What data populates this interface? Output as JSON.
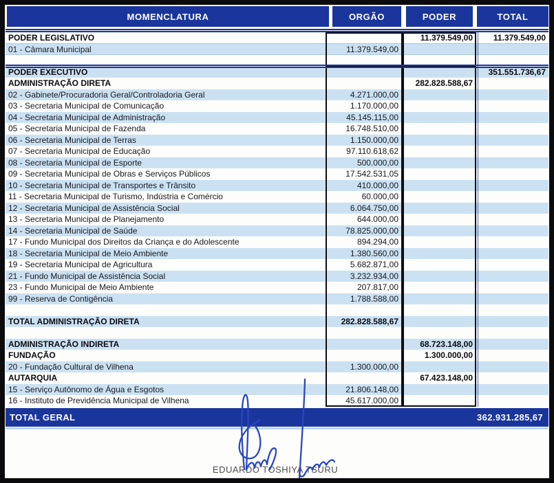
{
  "document": {
    "title": "Municipal budget allocation table",
    "columns": {
      "momenclatura": "MOMENCLATURA",
      "orgao": "ORGÃO",
      "poder": "PODER",
      "total": "TOTAL"
    },
    "rows": [
      {
        "label": "PODER LEGISLATIVO",
        "orgao": "",
        "poder": "11.379.549,00",
        "total": "11.379.549,00",
        "bold": true,
        "shade": "white",
        "underline": true
      },
      {
        "label": "01 - Câmara Municipal",
        "orgao": "11.379.549,00",
        "poder": "",
        "total": "",
        "bold": false,
        "shade": "blue",
        "underline": true
      },
      {
        "label": "",
        "orgao": "",
        "poder": "",
        "total": "",
        "bold": false,
        "shade": "white"
      },
      {
        "label": "PODER EXECUTIVO",
        "orgao": "",
        "poder": "",
        "total": "351.551.736,67",
        "bold": true,
        "shade": "blue"
      },
      {
        "label": "ADMINISTRAÇÃO DIRETA",
        "orgao": "",
        "poder": "282.828.588,67",
        "total": "",
        "bold": true,
        "shade": "white"
      },
      {
        "label": "02 - Gabinete/Procuradoria Geral/Controladoria Geral",
        "orgao": "4.271.000,00",
        "poder": "",
        "total": "",
        "bold": false,
        "shade": "blue"
      },
      {
        "label": "03 - Secretaria Municipal de Comunicação",
        "orgao": "1.170.000,00",
        "poder": "",
        "total": "",
        "bold": false,
        "shade": "white"
      },
      {
        "label": "04 - Secretaria Municipal de Administração",
        "orgao": "45.145.115,00",
        "poder": "",
        "total": "",
        "bold": false,
        "shade": "blue"
      },
      {
        "label": "05 - Secretaria Municipal de Fazenda",
        "orgao": "16.748.510,00",
        "poder": "",
        "total": "",
        "bold": false,
        "shade": "white"
      },
      {
        "label": "06 - Secretaria Municipal de Terras",
        "orgao": "1.150.000,00",
        "poder": "",
        "total": "",
        "bold": false,
        "shade": "blue"
      },
      {
        "label": "07 - Secretaria Municipal de Educação",
        "orgao": "97.110.618,62",
        "poder": "",
        "total": "",
        "bold": false,
        "shade": "white"
      },
      {
        "label": "08 - Secretaria Municipal de Esporte",
        "orgao": "500.000,00",
        "poder": "",
        "total": "",
        "bold": false,
        "shade": "blue"
      },
      {
        "label": "09 - Secretaria Municipal de Obras e Serviços Públicos",
        "orgao": "17.542.531,05",
        "poder": "",
        "total": "",
        "bold": false,
        "shade": "white"
      },
      {
        "label": "10 - Secretaria Municipal de Transportes e Trânsito",
        "orgao": "410.000,00",
        "poder": "",
        "total": "",
        "bold": false,
        "shade": "blue"
      },
      {
        "label": "11 - Secretaria Municipal de Turismo, Indústria e Comércio",
        "orgao": "60.000,00",
        "poder": "",
        "total": "",
        "bold": false,
        "shade": "white"
      },
      {
        "label": "12 - Secretaria Municipal de Assistência Social",
        "orgao": "6.064.750,00",
        "poder": "",
        "total": "",
        "bold": false,
        "shade": "blue"
      },
      {
        "label": "13 - Secretaria Municipal de Planejamento",
        "orgao": "644.000,00",
        "poder": "",
        "total": "",
        "bold": false,
        "shade": "white"
      },
      {
        "label": "14 - Secretaria Municipal de Saúde",
        "orgao": "78.825.000,00",
        "poder": "",
        "total": "",
        "bold": false,
        "shade": "blue"
      },
      {
        "label": "17 - Fundo Municipal dos Direitos da Criança e do Adolescente",
        "orgao": "894.294,00",
        "poder": "",
        "total": "",
        "bold": false,
        "shade": "white"
      },
      {
        "label": "18 - Secretaria Municipal de Meio Ambiente",
        "orgao": "1.380.560,00",
        "poder": "",
        "total": "",
        "bold": false,
        "shade": "blue"
      },
      {
        "label": "19 - Secretaria Municipal de Agricultura",
        "orgao": "5.682.871,00",
        "poder": "",
        "total": "",
        "bold": false,
        "shade": "white"
      },
      {
        "label": "21 - Fundo Municipal de Assistência Social",
        "orgao": "3.232.934,00",
        "poder": "",
        "total": "",
        "bold": false,
        "shade": "blue"
      },
      {
        "label": "23 - Fundo Municipal de Meio Ambiente",
        "orgao": "207.817,00",
        "poder": "",
        "total": "",
        "bold": false,
        "shade": "white"
      },
      {
        "label": "99 - Reserva de Contigência",
        "orgao": "1.788.588,00",
        "poder": "",
        "total": "",
        "bold": false,
        "shade": "blue"
      },
      {
        "label": "",
        "orgao": "",
        "poder": "",
        "total": "",
        "bold": false,
        "shade": "white"
      },
      {
        "label": "TOTAL ADMINISTRAÇÃO DIRETA",
        "orgao": "282.828.588,67",
        "poder": "",
        "total": "",
        "bold": true,
        "shade": "blue"
      },
      {
        "label": "",
        "orgao": "",
        "poder": "",
        "total": "",
        "bold": false,
        "shade": "white"
      },
      {
        "label": "ADMINISTRAÇÃO INDIRETA",
        "orgao": "",
        "poder": "68.723.148,00",
        "total": "",
        "bold": true,
        "shade": "blue"
      },
      {
        "label": "FUNDAÇÃO",
        "orgao": "",
        "poder": "1.300.000,00",
        "total": "",
        "bold": true,
        "shade": "white"
      },
      {
        "label": "20 - Fundação Cultural de Vilhena",
        "orgao": "1.300.000,00",
        "poder": "",
        "total": "",
        "bold": false,
        "shade": "blue"
      },
      {
        "label": "AUTARQUIA",
        "orgao": "",
        "poder": "67.423.148,00",
        "total": "",
        "bold": true,
        "shade": "white"
      },
      {
        "label": "15 - Serviço Autônomo de Água e Esgotos",
        "orgao": "21.806.148,00",
        "poder": "",
        "total": "",
        "bold": false,
        "shade": "blue"
      },
      {
        "label": "16 - Instituto de Previdência Municipal de Vilhena",
        "orgao": "45.617.000,00",
        "poder": "",
        "total": "",
        "bold": false,
        "shade": "white"
      }
    ],
    "grand_total": {
      "label": "TOTAL GERAL",
      "value": "362.931.285,67"
    },
    "signatory_name": "EDUARDO TOSHIYA TSURU",
    "colors": {
      "header_navy": "#1a369c",
      "stripe_blue": "#cbe1f2",
      "ink_blue": "#2a46bf"
    }
  }
}
